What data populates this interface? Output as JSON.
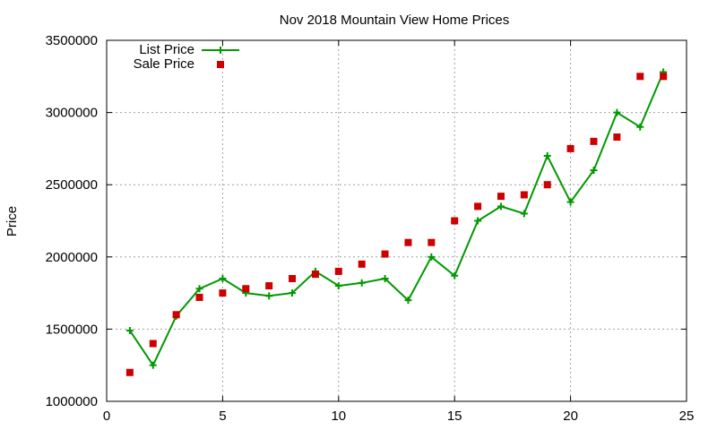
{
  "chart_data": {
    "type": "line",
    "title": "Nov 2018 Mountain View Home Prices",
    "xlabel": "",
    "ylabel": "Price",
    "xlim": [
      0,
      25
    ],
    "ylim": [
      1000000,
      3500000
    ],
    "xticks": [
      0,
      5,
      10,
      15,
      20,
      25
    ],
    "yticks": [
      1000000,
      1500000,
      2000000,
      2500000,
      3000000,
      3500000
    ],
    "grid": true,
    "legend_position": "top-left",
    "series": [
      {
        "name": "List Price",
        "style": "line-plus",
        "color": "#009900",
        "x": [
          1,
          2,
          3,
          4,
          5,
          6,
          7,
          8,
          9,
          10,
          11,
          12,
          13,
          14,
          15,
          16,
          17,
          18,
          19,
          20,
          21,
          22,
          23,
          24
        ],
        "values": [
          1490000,
          1250000,
          1590000,
          1780000,
          1850000,
          1750000,
          1730000,
          1750000,
          1900000,
          1800000,
          1820000,
          1850000,
          1700000,
          2000000,
          1870000,
          2250000,
          2350000,
          2300000,
          2700000,
          2380000,
          2600000,
          3000000,
          2900000,
          3280000
        ]
      },
      {
        "name": "Sale Price",
        "style": "square-marker",
        "color": "#cc0000",
        "x": [
          1,
          2,
          3,
          4,
          5,
          6,
          7,
          8,
          9,
          10,
          11,
          12,
          13,
          14,
          15,
          16,
          17,
          18,
          19,
          20,
          21,
          22,
          23,
          24
        ],
        "values": [
          1200000,
          1400000,
          1600000,
          1720000,
          1750000,
          1780000,
          1800000,
          1850000,
          1880000,
          1900000,
          1950000,
          2020000,
          2100000,
          2100000,
          2250000,
          2350000,
          2420000,
          2430000,
          2500000,
          2750000,
          2800000,
          2830000,
          3250000,
          3250000
        ]
      }
    ]
  }
}
